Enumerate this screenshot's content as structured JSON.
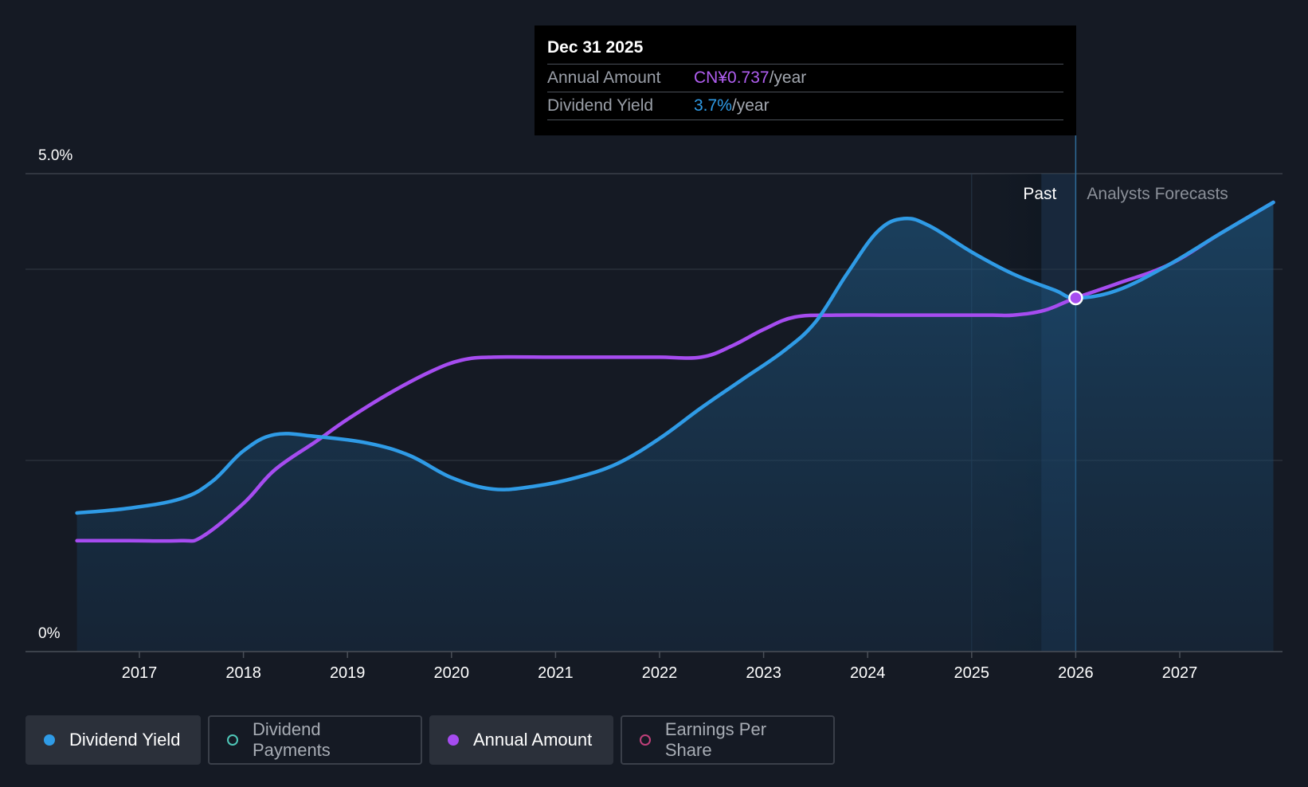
{
  "chart_data": {
    "type": "line",
    "x_ticks": [
      "2017",
      "2018",
      "2019",
      "2020",
      "2021",
      "2022",
      "2023",
      "2024",
      "2025",
      "2026",
      "2027"
    ],
    "y_ticks": [
      "5.0%",
      "0%"
    ],
    "ylim": [
      0,
      5.0
    ],
    "region_labels": {
      "past": "Past",
      "forecast": "Analysts Forecasts"
    },
    "series": [
      {
        "name": "Dividend Yield",
        "color": "#2f9be6",
        "x": [
          2016.4,
          2016.9,
          2017.4,
          2017.7,
          2018.0,
          2018.3,
          2018.7,
          2019.2,
          2019.6,
          2020.0,
          2020.4,
          2020.8,
          2021.2,
          2021.6,
          2022.0,
          2022.4,
          2022.8,
          2023.2,
          2023.5,
          2023.8,
          2024.1,
          2024.35,
          2024.6,
          2025.0,
          2025.4,
          2025.8,
          2026.0,
          2026.4,
          2026.9,
          2027.4,
          2027.9
        ],
        "values": [
          1.45,
          1.5,
          1.6,
          1.78,
          2.1,
          2.27,
          2.25,
          2.18,
          2.05,
          1.82,
          1.7,
          1.73,
          1.82,
          1.97,
          2.23,
          2.55,
          2.85,
          3.15,
          3.45,
          3.95,
          4.4,
          4.53,
          4.45,
          4.18,
          3.95,
          3.78,
          3.7,
          3.78,
          4.05,
          4.38,
          4.7
        ]
      },
      {
        "name": "Annual Amount",
        "color": "#a64cf0",
        "x": [
          2016.4,
          2016.9,
          2017.4,
          2017.6,
          2018.0,
          2018.3,
          2018.7,
          2019.0,
          2019.4,
          2019.8,
          2020.1,
          2020.4,
          2021.0,
          2021.6,
          2022.0,
          2022.4,
          2022.7,
          2023.0,
          2023.3,
          2023.7,
          2024.2,
          2024.8,
          2025.2,
          2025.4,
          2025.7,
          2026.0,
          2026.4,
          2026.9,
          2027.4,
          2027.9
        ],
        "values": [
          1.16,
          1.16,
          1.16,
          1.2,
          1.55,
          1.9,
          2.2,
          2.43,
          2.7,
          2.93,
          3.05,
          3.08,
          3.08,
          3.08,
          3.08,
          3.08,
          3.2,
          3.37,
          3.5,
          3.52,
          3.52,
          3.52,
          3.52,
          3.52,
          3.57,
          3.7,
          3.85,
          4.05,
          4.38,
          4.7
        ]
      }
    ],
    "highlight_point": {
      "x": 2026.0,
      "value": 3.7
    },
    "past_forecast_boundary": 2026.0,
    "grid": true
  },
  "tooltip": {
    "date": "Dec 31 2025",
    "rows": [
      {
        "label": "Annual Amount",
        "value": "CN¥0.737",
        "unit": "/year"
      },
      {
        "label": "Dividend Yield",
        "value": "3.7%",
        "unit": "/year"
      }
    ]
  },
  "legend": [
    {
      "label": "Dividend Yield",
      "color": "#2f9be6",
      "active": true,
      "filled": true
    },
    {
      "label": "Dividend Payments",
      "color": "#4fc7b8",
      "active": false,
      "filled": false
    },
    {
      "label": "Annual Amount",
      "color": "#a64cf0",
      "active": true,
      "filled": true
    },
    {
      "label": "Earnings Per Share",
      "color": "#c0407a",
      "active": false,
      "filled": false
    }
  ]
}
